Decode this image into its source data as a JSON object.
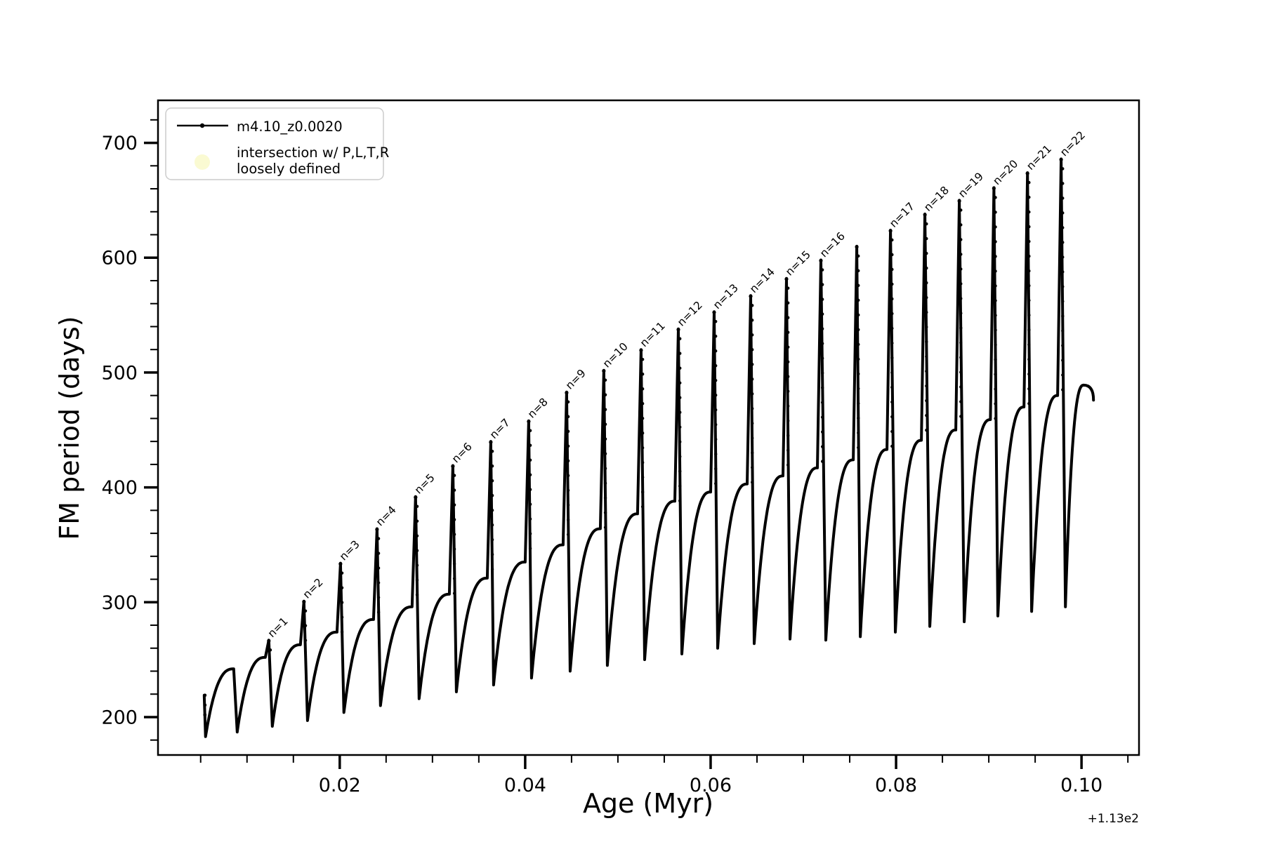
{
  "figure": {
    "background": "#ffffff",
    "line_color": "#000000",
    "intersection_marker_color": "#FAFAD2",
    "legend_border_color": "#cccccc"
  },
  "legend": {
    "entry1_label": "m4.10_z0.0020",
    "entry2_label_line1": "intersection w/ P,L,T,R",
    "entry2_label_line2": "loosely defined"
  },
  "chart_data": {
    "type": "line",
    "title": "",
    "xlabel": "Age (Myr)",
    "ylabel": "FM period (days)",
    "x_offset_text": "+1.13e2",
    "xlim": [
      0.0004,
      0.1062
    ],
    "ylim": [
      167,
      737
    ],
    "x_major_ticks": [
      0.02,
      0.04,
      0.06,
      0.08,
      0.1
    ],
    "x_major_tick_labels": [
      "0.02",
      "0.04",
      "0.06",
      "0.08",
      "0.10"
    ],
    "x_minor_tick_step": 0.005,
    "x_minor_tick_range": [
      0.005,
      0.105
    ],
    "y_major_ticks": [
      200,
      300,
      400,
      500,
      600,
      700
    ],
    "y_major_tick_labels": [
      "200",
      "300",
      "400",
      "500",
      "600",
      "700"
    ],
    "y_minor_tick_step": 20,
    "y_minor_tick_range": [
      180,
      720
    ],
    "grid": false,
    "legend_position": "upper-left",
    "series_name": "m4.10_z0.0020",
    "curve_start": [
      0.00538,
      219
    ],
    "curve_end": [
      0.10129,
      476
    ],
    "final_hump": {
      "x": 0.10023,
      "value": 489
    },
    "teeth": [
      {
        "dip": [
          0.00553,
          183
        ],
        "hump": 242,
        "spike_x": null,
        "peak": null,
        "label": null
      },
      {
        "dip": [
          0.00894,
          187
        ],
        "hump": 252,
        "spike_x": 0.01235,
        "peak": 267,
        "label": "n=1"
      },
      {
        "dip": [
          0.01273,
          192
        ],
        "hump": 263,
        "spike_x": 0.01614,
        "peak": 301,
        "label": "n=2"
      },
      {
        "dip": [
          0.01652,
          197
        ],
        "hump": 274,
        "spike_x": 0.02008,
        "peak": 334,
        "label": "n=3"
      },
      {
        "dip": [
          0.02045,
          204
        ],
        "hump": 285,
        "spike_x": 0.02402,
        "peak": 364,
        "label": "n=4"
      },
      {
        "dip": [
          0.02439,
          210
        ],
        "hump": 296,
        "spike_x": 0.02818,
        "peak": 392,
        "label": "n=5"
      },
      {
        "dip": [
          0.02856,
          216
        ],
        "hump": 307,
        "spike_x": 0.0322,
        "peak": 419,
        "label": "n=6"
      },
      {
        "dip": [
          0.03258,
          222
        ],
        "hump": 321,
        "spike_x": 0.03629,
        "peak": 440,
        "label": "n=7"
      },
      {
        "dip": [
          0.03659,
          228
        ],
        "hump": 335,
        "spike_x": 0.04038,
        "peak": 458,
        "label": "n=8"
      },
      {
        "dip": [
          0.04068,
          234
        ],
        "hump": 350,
        "spike_x": 0.04447,
        "peak": 483,
        "label": "n=9"
      },
      {
        "dip": [
          0.04485,
          240
        ],
        "hump": 364,
        "spike_x": 0.04848,
        "peak": 502,
        "label": "n=10"
      },
      {
        "dip": [
          0.04886,
          245
        ],
        "hump": 377,
        "spike_x": 0.0525,
        "peak": 520,
        "label": "n=11"
      },
      {
        "dip": [
          0.05288,
          250
        ],
        "hump": 388,
        "spike_x": 0.05652,
        "peak": 538,
        "label": "n=12"
      },
      {
        "dip": [
          0.0569,
          255
        ],
        "hump": 396,
        "spike_x": 0.06038,
        "peak": 553,
        "label": "n=13"
      },
      {
        "dip": [
          0.06076,
          260
        ],
        "hump": 403,
        "spike_x": 0.06432,
        "peak": 567,
        "label": "n=14"
      },
      {
        "dip": [
          0.0647,
          264
        ],
        "hump": 410,
        "spike_x": 0.06818,
        "peak": 582,
        "label": "n=15"
      },
      {
        "dip": [
          0.06856,
          268
        ],
        "hump": 417,
        "spike_x": 0.07189,
        "peak": 598,
        "label": "n=16"
      },
      {
        "dip": [
          0.07242,
          267
        ],
        "hump": 424,
        "spike_x": 0.07576,
        "peak": 610,
        "label": null
      },
      {
        "dip": [
          0.07614,
          270
        ],
        "hump": 433,
        "spike_x": 0.0794,
        "peak": 624,
        "label": "n=17"
      },
      {
        "dip": [
          0.07992,
          274
        ],
        "hump": 441,
        "spike_x": 0.08311,
        "peak": 638,
        "label": "n=18"
      },
      {
        "dip": [
          0.08364,
          279
        ],
        "hump": 450,
        "spike_x": 0.08682,
        "peak": 650,
        "label": "n=19"
      },
      {
        "dip": [
          0.08735,
          283
        ],
        "hump": 459,
        "spike_x": 0.09055,
        "peak": 661,
        "label": "n=20"
      },
      {
        "dip": [
          0.09098,
          288
        ],
        "hump": 470,
        "spike_x": 0.09417,
        "peak": 674,
        "label": "n=21"
      },
      {
        "dip": [
          0.09462,
          292
        ],
        "hump": 480,
        "spike_x": 0.0978,
        "peak": 686,
        "label": "n=22"
      },
      {
        "dip": [
          0.09826,
          296
        ],
        "hump": 489,
        "spike_x": null,
        "peak": null,
        "label": null
      }
    ]
  }
}
